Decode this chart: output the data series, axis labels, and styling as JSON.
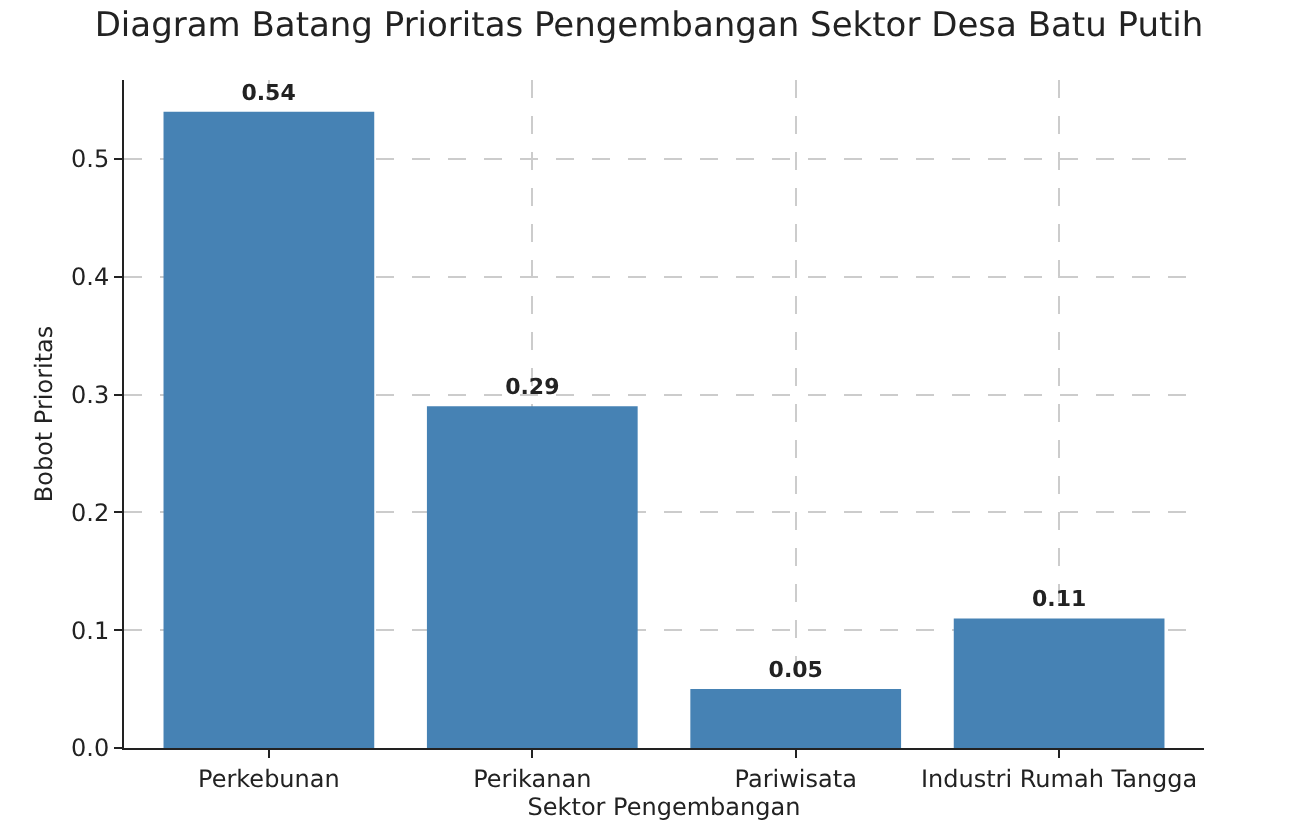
{
  "chart_data": {
    "type": "bar",
    "title": "Diagram Batang Prioritas Pengembangan Sektor Desa Batu Putih",
    "xlabel": "Sektor Pengembangan",
    "ylabel": "Bobot Prioritas",
    "categories": [
      "Perkebunan",
      "Perikanan",
      "Pariwisata",
      "Industri Rumah Tangga"
    ],
    "values": [
      0.54,
      0.29,
      0.05,
      0.11
    ],
    "color": "#4682b4",
    "ylim": [
      0,
      0.567
    ],
    "yticks": [
      {
        "value": 0,
        "label": "0.0"
      },
      0.1,
      0.2,
      0.3,
      0.4,
      0.5
    ],
    "grid": true,
    "data_labels": true
  }
}
